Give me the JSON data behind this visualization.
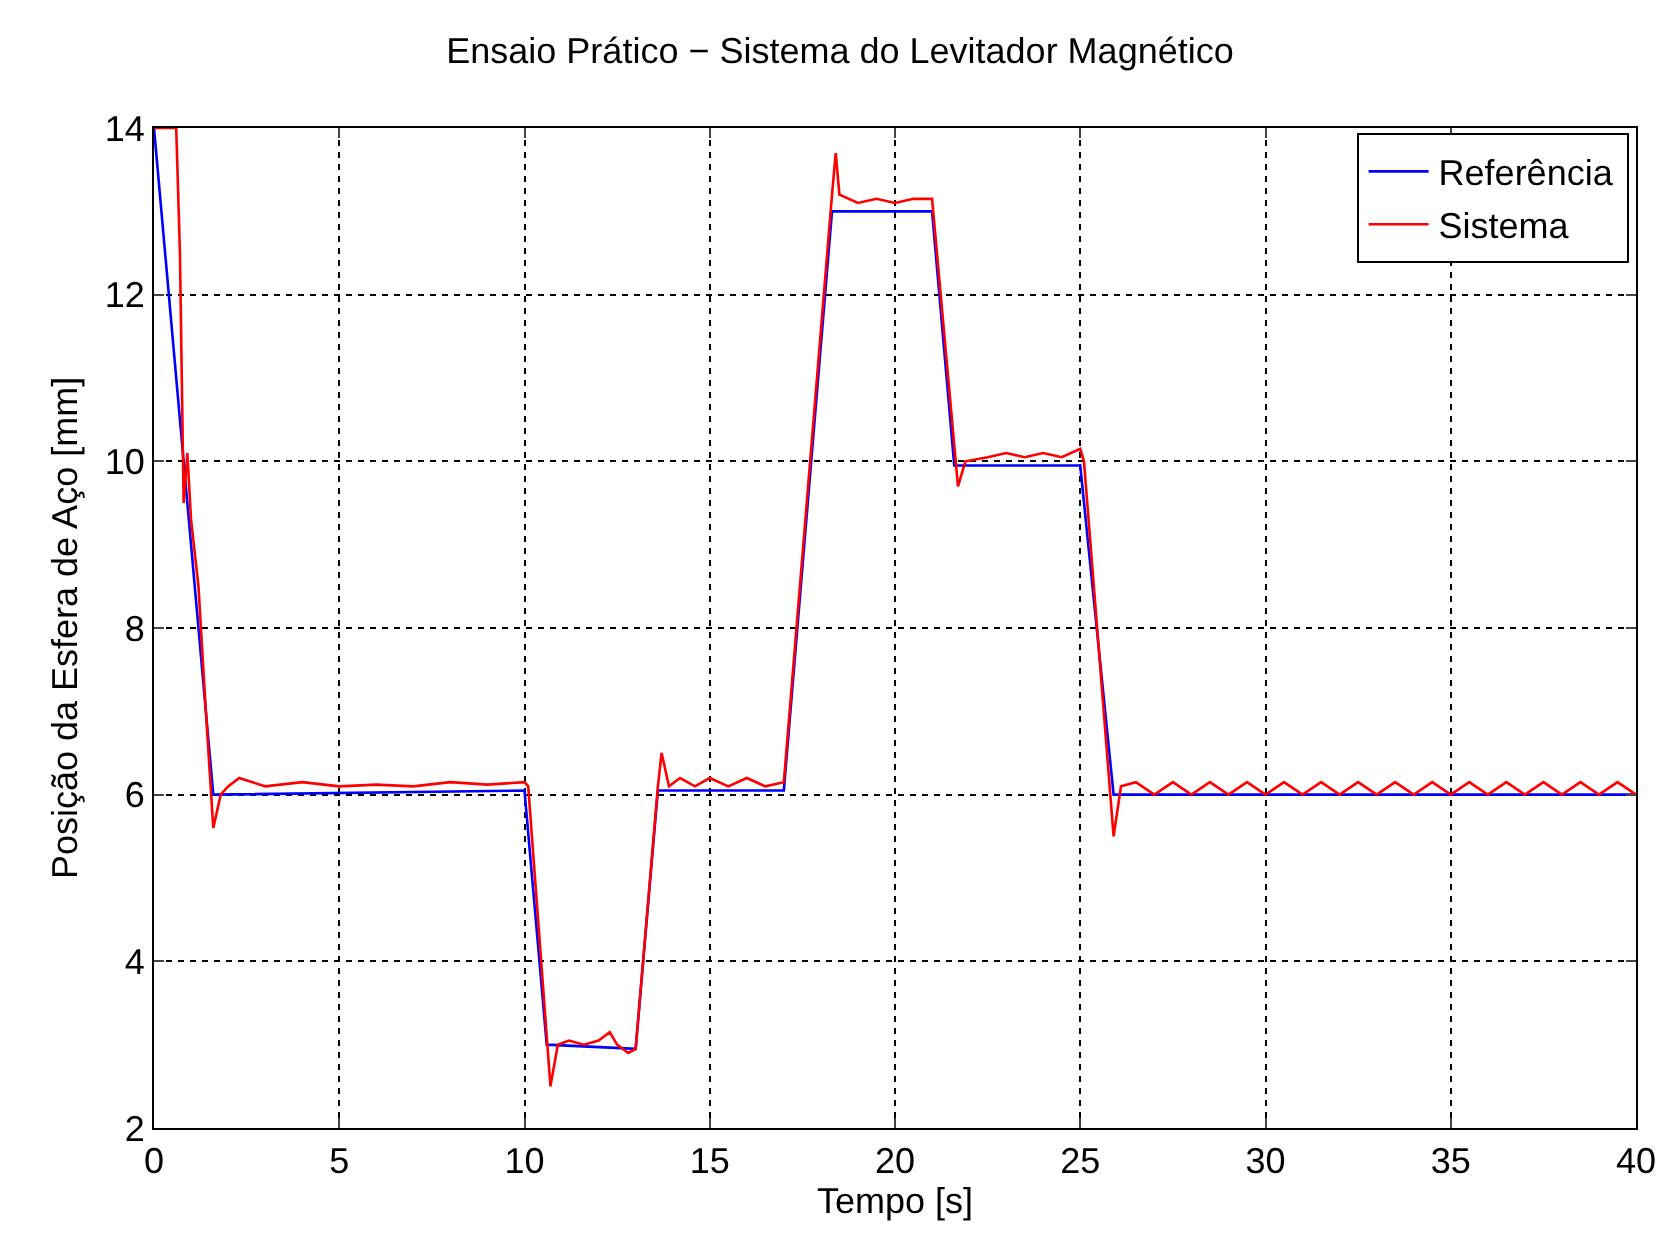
{
  "chart_data": {
    "type": "line",
    "title": "Ensaio Prático − Sistema do Levitador Magnético",
    "xlabel": "Tempo [s]",
    "ylabel": "Posição da Esfera de Aço [mm]",
    "xlim": [
      0,
      40
    ],
    "ylim": [
      2,
      14
    ],
    "xticks": [
      0,
      5,
      10,
      15,
      20,
      25,
      30,
      35,
      40
    ],
    "yticks": [
      2,
      4,
      6,
      8,
      10,
      12,
      14
    ],
    "grid": true,
    "legend": "top right",
    "line_style": "solid",
    "series": [
      {
        "name": "Referência",
        "color": "#0000ff",
        "x": [
          0,
          1.6,
          10,
          10.6,
          13,
          13.6,
          17,
          18.3,
          21,
          21.6,
          25,
          25.9,
          40
        ],
        "values": [
          14,
          6,
          6.05,
          3,
          2.95,
          6.05,
          6.05,
          13,
          13,
          9.95,
          9.95,
          6,
          6
        ]
      },
      {
        "name": "Sistema",
        "color": "#ff0000",
        "x": [
          0,
          0.6,
          0.7,
          0.8,
          0.9,
          1.0,
          1.2,
          1.4,
          1.6,
          1.8,
          2.0,
          2.3,
          3,
          4,
          5,
          6,
          7,
          8,
          9,
          10,
          10.1,
          10.7,
          10.9,
          11.2,
          11.6,
          12,
          12.3,
          12.5,
          12.8,
          13,
          13.6,
          13.7,
          13.9,
          14.2,
          14.6,
          15,
          15.5,
          16,
          16.5,
          17,
          18.3,
          18.4,
          18.5,
          19,
          19.5,
          20,
          20.5,
          21,
          21.7,
          21.9,
          22.5,
          23,
          23.5,
          24,
          24.5,
          25,
          25.1,
          25.9,
          26.1,
          26.5,
          27,
          27.5,
          28,
          28.5,
          29,
          29.5,
          30,
          30.5,
          31,
          31.5,
          32,
          32.5,
          33,
          33.5,
          34,
          34.5,
          35,
          35.5,
          36,
          36.5,
          37,
          37.5,
          38,
          38.5,
          39,
          39.5,
          40
        ],
        "values": [
          14,
          14,
          12.5,
          9.5,
          10.1,
          9.3,
          8.5,
          7.0,
          5.6,
          6.0,
          6.1,
          6.2,
          6.1,
          6.15,
          6.1,
          6.12,
          6.1,
          6.15,
          6.12,
          6.15,
          6.1,
          2.5,
          3.0,
          3.05,
          3.0,
          3.05,
          3.15,
          3.0,
          2.9,
          2.95,
          6.1,
          6.5,
          6.1,
          6.2,
          6.1,
          6.2,
          6.1,
          6.2,
          6.1,
          6.15,
          13.2,
          13.7,
          13.2,
          13.1,
          13.15,
          13.1,
          13.15,
          13.15,
          9.7,
          10.0,
          10.05,
          10.1,
          10.05,
          10.1,
          10.05,
          10.15,
          10.0,
          5.5,
          6.1,
          6.15,
          6.0,
          6.15,
          6.0,
          6.15,
          6.0,
          6.15,
          6.0,
          6.15,
          6.0,
          6.15,
          6.0,
          6.15,
          6.0,
          6.15,
          6.0,
          6.15,
          6.0,
          6.15,
          6.0,
          6.15,
          6.0,
          6.15,
          6.0,
          6.15,
          6.0,
          6.15,
          6.0
        ]
      }
    ]
  }
}
